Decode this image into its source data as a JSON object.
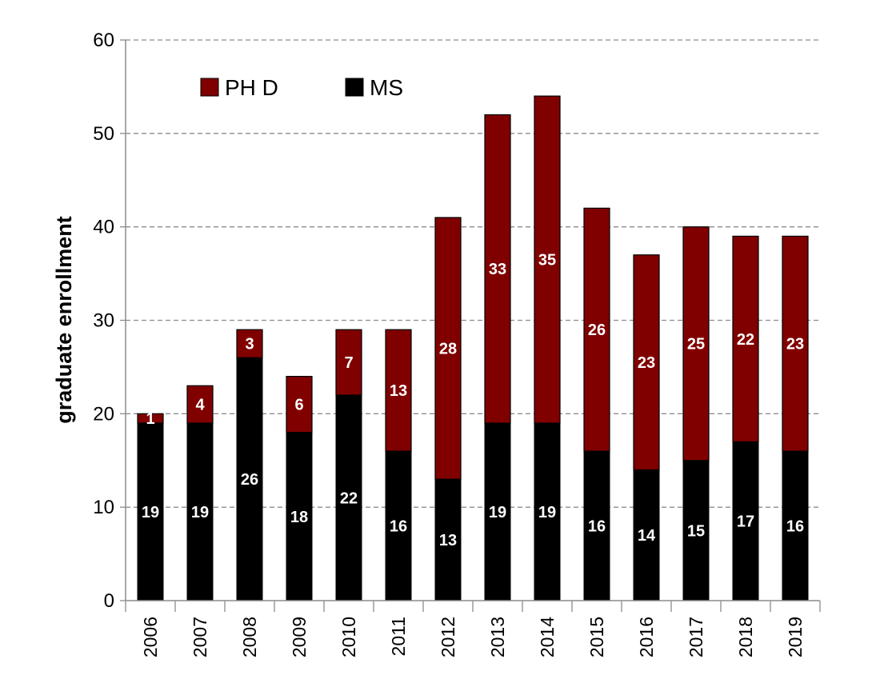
{
  "chart_data": {
    "type": "bar",
    "stacked": true,
    "title": "",
    "xlabel": "",
    "ylabel": "graduate enrollment",
    "ylim": [
      0,
      60
    ],
    "yticks": [
      "0",
      "10",
      "20",
      "30",
      "40",
      "50",
      "60"
    ],
    "grid": "horizontal-dashed",
    "legend_position": "top-left",
    "categories": [
      "2006",
      "2007",
      "2008",
      "2009",
      "2010",
      "2011",
      "2012",
      "2013",
      "2014",
      "2015",
      "2016",
      "2017",
      "2018",
      "2019"
    ],
    "series": [
      {
        "name": "MS",
        "color": "#000000",
        "values": [
          19,
          19,
          26,
          18,
          22,
          16,
          13,
          19,
          19,
          16,
          14,
          15,
          17,
          16
        ]
      },
      {
        "name": "PH D",
        "color": "#800000",
        "values": [
          1,
          4,
          3,
          6,
          7,
          13,
          28,
          33,
          35,
          26,
          23,
          25,
          22,
          23
        ]
      }
    ],
    "legend": [
      {
        "label": "PH D",
        "color": "#800000"
      },
      {
        "label": "MS",
        "color": "#000000"
      }
    ]
  }
}
